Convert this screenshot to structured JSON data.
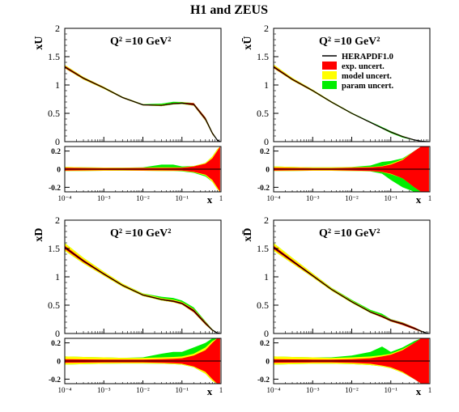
{
  "figure": {
    "title": "H1 and ZEUS",
    "colors": {
      "central": "#000000",
      "exp": "#ff0000",
      "model": "#ffff00",
      "param": "#00ee00"
    },
    "legend": {
      "central": "HERAPDF1.0",
      "exp": "exp. uncert.",
      "model": "model uncert.",
      "param": "param uncert."
    }
  },
  "chart_data": [
    {
      "type": "area",
      "id": "xU",
      "ylabel": "xU",
      "annotation": "Q² =10 GeV²",
      "xlabel": "x",
      "xscale": "log",
      "xlim": [
        0.0001,
        1
      ],
      "ylim": [
        0,
        2
      ],
      "yticks": [
        0,
        0.5,
        1,
        1.5,
        2
      ],
      "xticks_main": [
        "10⁻⁴",
        "10⁻³",
        "10⁻²",
        "10⁻¹",
        "1"
      ],
      "legend": false,
      "x": [
        0.0001,
        0.0003,
        0.001,
        0.003,
        0.01,
        0.03,
        0.06,
        0.1,
        0.2,
        0.4,
        0.6,
        0.8,
        0.95
      ],
      "central": [
        1.32,
        1.12,
        0.95,
        0.78,
        0.65,
        0.64,
        0.67,
        0.68,
        0.66,
        0.4,
        0.15,
        0.03,
        0.0
      ],
      "ratio": {
        "ylim": [
          -0.25,
          0.25
        ],
        "yticks": [
          -0.2,
          0,
          0.2
        ],
        "x": [
          0.0001,
          0.0003,
          0.001,
          0.003,
          0.01,
          0.03,
          0.06,
          0.1,
          0.2,
          0.4,
          0.6,
          0.8,
          0.95
        ],
        "exp": [
          0.015,
          0.013,
          0.012,
          0.012,
          0.013,
          0.013,
          0.014,
          0.015,
          0.03,
          0.06,
          0.12,
          0.2,
          0.25
        ],
        "model_up": [
          0.025,
          0.02,
          0.018,
          0.017,
          0.018,
          0.02,
          0.02,
          0.02,
          0.035,
          0.07,
          0.14,
          0.22,
          0.25
        ],
        "model_dn": [
          0.02,
          0.02,
          0.018,
          0.017,
          0.018,
          0.02,
          0.02,
          0.02,
          0.035,
          0.07,
          0.14,
          0.22,
          0.25
        ],
        "param_up": [
          0.025,
          0.02,
          0.018,
          0.017,
          0.02,
          0.05,
          0.05,
          0.03,
          0.035,
          0.07,
          0.14,
          0.22,
          0.25
        ],
        "param_dn": [
          0.02,
          0.02,
          0.018,
          0.017,
          0.018,
          0.02,
          0.02,
          0.025,
          0.04,
          0.08,
          0.14,
          0.22,
          0.25
        ]
      }
    },
    {
      "type": "area",
      "id": "xUbar",
      "ylabel": "xŪ",
      "annotation": "Q² =10 GeV²",
      "xlabel": "x",
      "xscale": "log",
      "xlim": [
        0.0001,
        1
      ],
      "ylim": [
        0,
        2
      ],
      "yticks": [
        0,
        0.5,
        1,
        1.5,
        2
      ],
      "xticks_main": [
        "10⁻⁴",
        "10⁻³",
        "10⁻²",
        "10⁻¹",
        "1"
      ],
      "legend": true,
      "x": [
        0.0001,
        0.0003,
        0.001,
        0.003,
        0.01,
        0.03,
        0.06,
        0.1,
        0.2,
        0.4,
        0.6,
        0.8,
        0.95
      ],
      "central": [
        1.32,
        1.1,
        0.9,
        0.7,
        0.5,
        0.34,
        0.24,
        0.17,
        0.09,
        0.03,
        0.01,
        0.003,
        0.0
      ],
      "ratio": {
        "ylim": [
          -0.25,
          0.25
        ],
        "yticks": [
          -0.2,
          0,
          0.2
        ],
        "x": [
          0.0001,
          0.0003,
          0.001,
          0.003,
          0.01,
          0.03,
          0.06,
          0.1,
          0.2,
          0.4,
          0.6,
          0.8,
          0.95
        ],
        "exp": [
          0.015,
          0.013,
          0.012,
          0.012,
          0.015,
          0.02,
          0.03,
          0.05,
          0.1,
          0.2,
          0.25,
          0.25,
          0.25
        ],
        "model_up": [
          0.03,
          0.025,
          0.02,
          0.02,
          0.022,
          0.025,
          0.035,
          0.06,
          0.11,
          0.2,
          0.25,
          0.25,
          0.25
        ],
        "model_dn": [
          0.02,
          0.02,
          0.018,
          0.018,
          0.02,
          0.022,
          0.032,
          0.055,
          0.1,
          0.2,
          0.25,
          0.25,
          0.25
        ],
        "param_up": [
          0.03,
          0.025,
          0.02,
          0.02,
          0.025,
          0.04,
          0.08,
          0.09,
          0.12,
          0.2,
          0.25,
          0.25,
          0.25
        ],
        "param_dn": [
          0.02,
          0.02,
          0.018,
          0.018,
          0.02,
          0.025,
          0.05,
          0.12,
          0.2,
          0.25,
          0.25,
          0.25,
          0.25
        ]
      }
    },
    {
      "type": "area",
      "id": "xD",
      "ylabel": "xD",
      "annotation": "Q² =10 GeV²",
      "xlabel": "x",
      "xscale": "log",
      "xlim": [
        0.0001,
        1
      ],
      "ylim": [
        0,
        2
      ],
      "yticks": [
        0,
        0.5,
        1,
        1.5,
        2
      ],
      "xticks_main": [
        "10⁻⁴",
        "10⁻³",
        "10⁻²",
        "10⁻¹",
        "1"
      ],
      "legend": false,
      "x": [
        0.0001,
        0.0003,
        0.001,
        0.003,
        0.01,
        0.03,
        0.06,
        0.1,
        0.2,
        0.4,
        0.6,
        0.8,
        0.95
      ],
      "central": [
        1.52,
        1.28,
        1.05,
        0.85,
        0.68,
        0.6,
        0.57,
        0.53,
        0.4,
        0.18,
        0.06,
        0.01,
        0.0
      ],
      "ratio": {
        "ylim": [
          -0.25,
          0.25
        ],
        "yticks": [
          -0.2,
          0,
          0.2
        ],
        "x": [
          0.0001,
          0.0003,
          0.001,
          0.003,
          0.01,
          0.03,
          0.06,
          0.1,
          0.2,
          0.4,
          0.6,
          0.8,
          0.95
        ],
        "exp": [
          0.02,
          0.018,
          0.015,
          0.015,
          0.016,
          0.02,
          0.025,
          0.03,
          0.06,
          0.12,
          0.2,
          0.25,
          0.25
        ],
        "model_up": [
          0.05,
          0.045,
          0.04,
          0.035,
          0.035,
          0.04,
          0.045,
          0.05,
          0.08,
          0.15,
          0.22,
          0.25,
          0.25
        ],
        "model_dn": [
          0.04,
          0.035,
          0.03,
          0.028,
          0.028,
          0.03,
          0.035,
          0.04,
          0.07,
          0.14,
          0.22,
          0.25,
          0.25
        ],
        "param_up": [
          0.05,
          0.045,
          0.04,
          0.035,
          0.04,
          0.08,
          0.1,
          0.1,
          0.15,
          0.2,
          0.25,
          0.25,
          0.25
        ],
        "param_dn": [
          0.04,
          0.035,
          0.03,
          0.028,
          0.028,
          0.03,
          0.035,
          0.04,
          0.07,
          0.14,
          0.22,
          0.25,
          0.25
        ]
      }
    },
    {
      "type": "area",
      "id": "xDbar",
      "ylabel": "xD̄",
      "annotation": "Q² =10 GeV²",
      "xlabel": "x",
      "xscale": "log",
      "xlim": [
        0.0001,
        1
      ],
      "ylim": [
        0,
        2
      ],
      "yticks": [
        0,
        0.5,
        1,
        1.5,
        2
      ],
      "xticks_main": [
        "10⁻⁴",
        "10⁻³",
        "10⁻²",
        "10⁻¹",
        "1"
      ],
      "legend": false,
      "x": [
        0.0001,
        0.0003,
        0.001,
        0.003,
        0.01,
        0.03,
        0.06,
        0.1,
        0.2,
        0.4,
        0.6,
        0.8,
        0.95
      ],
      "central": [
        1.52,
        1.28,
        1.02,
        0.78,
        0.56,
        0.38,
        0.3,
        0.23,
        0.17,
        0.09,
        0.04,
        0.01,
        0.0
      ],
      "ratio": {
        "ylim": [
          -0.25,
          0.25
        ],
        "yticks": [
          -0.2,
          0,
          0.2
        ],
        "x": [
          0.0001,
          0.0003,
          0.001,
          0.003,
          0.01,
          0.03,
          0.06,
          0.1,
          0.2,
          0.4,
          0.6,
          0.8,
          0.95
        ],
        "exp": [
          0.02,
          0.018,
          0.016,
          0.016,
          0.02,
          0.03,
          0.05,
          0.07,
          0.12,
          0.2,
          0.25,
          0.25,
          0.25
        ],
        "model_up": [
          0.05,
          0.045,
          0.04,
          0.035,
          0.04,
          0.05,
          0.065,
          0.08,
          0.13,
          0.2,
          0.25,
          0.25,
          0.25
        ],
        "model_dn": [
          0.04,
          0.035,
          0.03,
          0.03,
          0.035,
          0.045,
          0.06,
          0.08,
          0.13,
          0.2,
          0.25,
          0.25,
          0.25
        ],
        "param_up": [
          0.05,
          0.045,
          0.04,
          0.04,
          0.06,
          0.1,
          0.16,
          0.1,
          0.15,
          0.22,
          0.25,
          0.25,
          0.25
        ],
        "param_dn": [
          0.04,
          0.035,
          0.03,
          0.03,
          0.035,
          0.045,
          0.06,
          0.08,
          0.13,
          0.2,
          0.25,
          0.25,
          0.25
        ]
      }
    }
  ]
}
